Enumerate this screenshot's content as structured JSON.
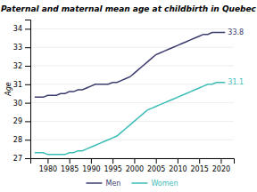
{
  "chart_data": {
    "type": "line",
    "title": "Paternal and maternal mean age at childbirth in Quebec",
    "y_label": "Age",
    "x": [
      1977,
      1978,
      1979,
      1980,
      1981,
      1982,
      1983,
      1984,
      1985,
      1986,
      1987,
      1988,
      1989,
      1990,
      1991,
      1992,
      1993,
      1994,
      1995,
      1996,
      1997,
      1998,
      1999,
      2000,
      2001,
      2002,
      2003,
      2004,
      2005,
      2006,
      2007,
      2008,
      2009,
      2010,
      2011,
      2012,
      2013,
      2014,
      2015,
      2016,
      2017,
      2018,
      2019,
      2020,
      2021
    ],
    "series": [
      {
        "name": "Men",
        "color": "#3c3c6e",
        "values": [
          30.3,
          30.3,
          30.3,
          30.4,
          30.4,
          30.4,
          30.5,
          30.5,
          30.6,
          30.6,
          30.7,
          30.7,
          30.8,
          30.9,
          31.0,
          31.0,
          31.0,
          31.0,
          31.1,
          31.1,
          31.2,
          31.3,
          31.4,
          31.6,
          31.8,
          32.0,
          32.2,
          32.4,
          32.6,
          32.7,
          32.8,
          32.9,
          33.0,
          33.1,
          33.2,
          33.3,
          33.4,
          33.5,
          33.6,
          33.7,
          33.7,
          33.8,
          33.8,
          33.8,
          33.8
        ]
      },
      {
        "name": "Women",
        "color": "#3dbdb8",
        "values": [
          27.3,
          27.3,
          27.3,
          27.2,
          27.2,
          27.2,
          27.2,
          27.2,
          27.3,
          27.3,
          27.4,
          27.4,
          27.5,
          27.6,
          27.7,
          27.8,
          27.9,
          28.0,
          28.1,
          28.2,
          28.4,
          28.6,
          28.8,
          29.0,
          29.2,
          29.4,
          29.6,
          29.7,
          29.8,
          29.9,
          30.0,
          30.1,
          30.2,
          30.3,
          30.4,
          30.5,
          30.6,
          30.7,
          30.8,
          30.9,
          31.0,
          31.0,
          31.1,
          31.1,
          31.1
        ]
      }
    ],
    "annotations": [
      {
        "text": "33.8",
        "x": 2021,
        "y": 33.8,
        "color": "#3c3c6e"
      },
      {
        "text": "31.1",
        "x": 2021,
        "y": 31.1,
        "color": "#3dbdb8"
      }
    ],
    "xlim": [
      1976,
      2023
    ],
    "ylim": [
      27,
      34.5
    ],
    "xticks": [
      1980,
      1985,
      1990,
      1995,
      2000,
      2005,
      2010,
      2015,
      2020
    ],
    "yticks": [
      27,
      28,
      29,
      30,
      31,
      32,
      33,
      34
    ],
    "grid": "y",
    "legend": "bottom"
  }
}
